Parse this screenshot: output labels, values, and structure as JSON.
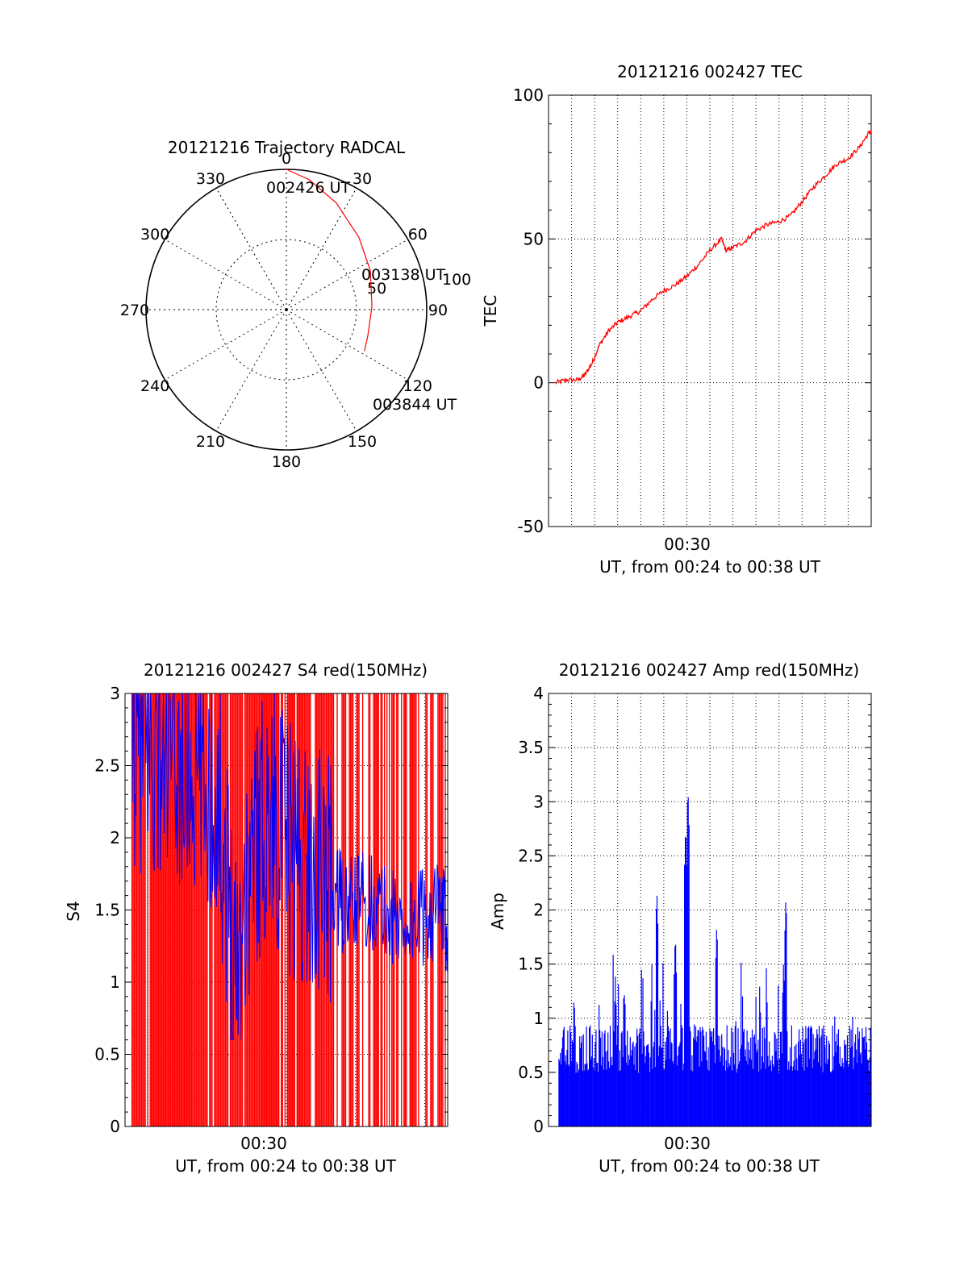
{
  "chart_data": [
    {
      "type": "polar",
      "title": "20121216 Trajectory RADCAL",
      "angle_labels": [
        "0",
        "30",
        "60",
        "90",
        "120",
        "150",
        "180",
        "210",
        "240",
        "270",
        "300",
        "330"
      ],
      "radial_ticks": [
        "50",
        "100"
      ],
      "trajectory": {
        "color": "#ff0000",
        "points": [
          [
            0,
            100
          ],
          [
            10,
            94
          ],
          [
            25,
            84
          ],
          [
            45,
            73
          ],
          [
            65,
            66
          ],
          [
            88,
            61
          ],
          [
            108,
            61
          ],
          [
            118,
            63
          ]
        ]
      },
      "time_labels": [
        "002426 UT",
        "003138 UT",
        "003844 UT"
      ]
    },
    {
      "type": "line",
      "title": "20121216 002427 TEC",
      "xlabel": "UT, from 00:24 to 00:38 UT",
      "ylabel": "TEC",
      "xlim": [
        0,
        14
      ],
      "ylim": [
        -50,
        100
      ],
      "x_tick_labels": [
        {
          "x": 6,
          "label": "00:30"
        }
      ],
      "y_ticks": [
        "100",
        "50",
        "0",
        "-50"
      ],
      "grid": true,
      "series_color": "#ff0000",
      "x": [
        0.3,
        0.8,
        1.3,
        1.6,
        1.9,
        2.2,
        2.6,
        3.0,
        3.5,
        4.0,
        4.5,
        5.0,
        5.5,
        6.0,
        6.5,
        7.0,
        7.5,
        7.7,
        8.0,
        8.5,
        9.0,
        9.5,
        10.0,
        10.5,
        11.0,
        11.5,
        12.0,
        12.5,
        13.0,
        13.5,
        13.9,
        14.0
      ],
      "y": [
        0,
        1,
        1,
        3,
        7,
        13,
        18,
        21,
        23,
        25,
        29,
        32,
        34,
        37,
        41,
        46,
        50,
        46,
        47,
        49,
        53,
        55,
        56,
        58,
        63,
        68,
        72,
        76,
        78,
        82,
        87,
        87
      ]
    },
    {
      "type": "line",
      "title": "20121216 002427 S4 red(150MHz)",
      "xlabel": "UT, from 00:24 to 00:38 UT",
      "ylabel": "S4",
      "xlim": [
        0,
        14
      ],
      "ylim": [
        0,
        3
      ],
      "x_tick_labels": [
        {
          "x": 6.5,
          "label": "00:30"
        }
      ],
      "y_ticks": [
        "3",
        "2.5",
        "2",
        "1.5",
        "1",
        "0.5",
        "0"
      ],
      "grid": true,
      "series": [
        {
          "color": "#ff0000",
          "style": "dense vertical spikes 0 to 3",
          "values": [
            3,
            0,
            3,
            0,
            3,
            0,
            3,
            0
          ]
        },
        {
          "color": "#0000ff",
          "x": [
            0.3,
            1.0,
            2.0,
            3.0,
            4.0,
            4.8,
            5.6,
            6.4,
            7.2,
            8.0,
            8.8,
            9.6,
            10.4,
            11.2,
            12.0,
            12.8,
            13.6,
            14.0
          ],
          "y": [
            2.7,
            2.6,
            2.5,
            2.4,
            2.3,
            1.2,
            2.0,
            2.2,
            1.9,
            1.8,
            1.7,
            1.5,
            1.6,
            1.5,
            1.4,
            1.45,
            1.5,
            1.4
          ]
        }
      ]
    },
    {
      "type": "bar",
      "title": "20121216 002427 Amp red(150MHz)",
      "xlabel": "UT, from 00:24 to 00:38 UT",
      "ylabel": "Amp",
      "xlim": [
        0,
        14
      ],
      "ylim": [
        0,
        4
      ],
      "x_tick_labels": [
        {
          "x": 6,
          "label": "00:30"
        }
      ],
      "y_ticks": [
        "4",
        "3.5",
        "3",
        "2.5",
        "2",
        "1.5",
        "1",
        "0.5",
        "0"
      ],
      "grid": true,
      "series_color": "#0000ff",
      "baseline": 0.65,
      "peaks": [
        {
          "x": 4.7,
          "y": 2.2
        },
        {
          "x": 5.5,
          "y": 1.8
        },
        {
          "x": 5.95,
          "y": 2.8
        },
        {
          "x": 6.05,
          "y": 3.15
        },
        {
          "x": 7.3,
          "y": 1.9
        },
        {
          "x": 10.3,
          "y": 2.15
        },
        {
          "x": 10.2,
          "y": 1.55
        },
        {
          "x": 2.9,
          "y": 1.4
        },
        {
          "x": 3.3,
          "y": 1.3
        }
      ]
    }
  ]
}
